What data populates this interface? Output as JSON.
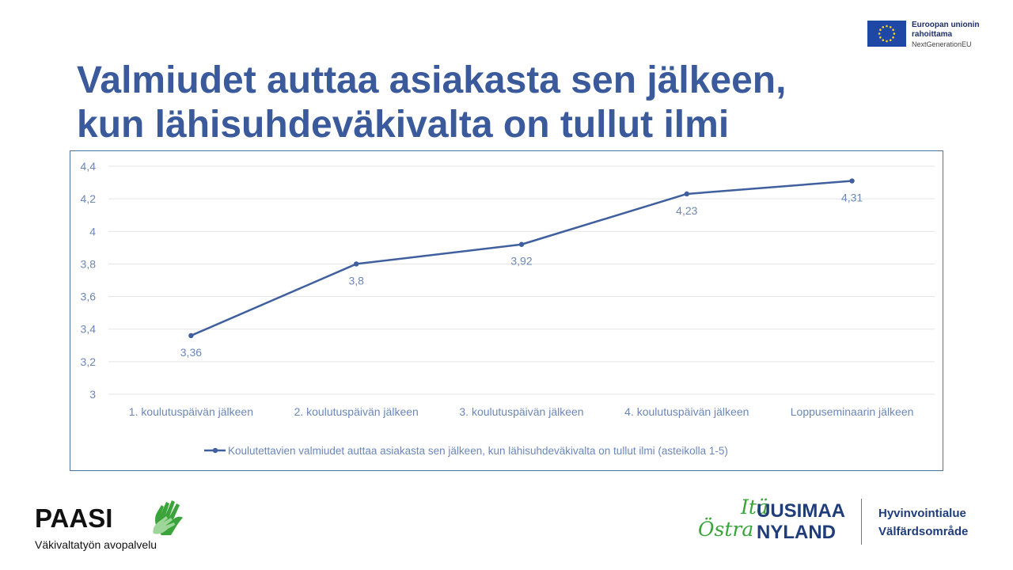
{
  "slide": {
    "title_line1": "Valmiudet auttaa asiakasta sen jälkeen,",
    "title_line2": "kun lähisuhdeväkivalta on tullut ilmi"
  },
  "eu_badge": {
    "line1": "Euroopan unionin",
    "line2": "rahoittama",
    "line3": "NextGenerationEU",
    "icon": "eu-flag-icon"
  },
  "chart_data": {
    "type": "line",
    "title": "",
    "xlabel": "",
    "ylabel": "",
    "categories": [
      "1. koulutuspäivän jälkeen",
      "2. koulutuspäivän jälkeen",
      "3. koulutuspäivän jälkeen",
      "4. koulutuspäivän jälkeen",
      "Loppuseminaarin jälkeen"
    ],
    "series": [
      {
        "name": "Koulutettavien valmiudet auttaa asiakasta sen jälkeen, kun lähisuhdeväkivalta on tullut ilmi (asteikolla 1-5)",
        "values": [
          3.36,
          3.8,
          3.92,
          4.23,
          4.31
        ],
        "labels": [
          "3,36",
          "3,8",
          "3,92",
          "4,23",
          "4,31"
        ],
        "color": "#3f5f9e"
      }
    ],
    "ylim": [
      3,
      4.4
    ],
    "yticks": [
      3,
      3.2,
      3.4,
      3.6,
      3.8,
      4,
      4.2,
      4.4
    ],
    "ytick_labels": [
      "3",
      "3,2",
      "3,4",
      "3,6",
      "3,8",
      "4",
      "4,2",
      "4,4"
    ],
    "grid": true,
    "legend": "bottom",
    "colors": {
      "axis_text": "#6b87ba",
      "gridline": "#e3e3e3",
      "frame": "#4a72a8"
    }
  },
  "footer": {
    "paasi_name": "PAASI",
    "paasi_subtitle": "Väkivaltatyön avopalvelu",
    "paasi_icon": "hands-icon",
    "region_ita": "Itä",
    "region_ostra": "Östra",
    "region_uusimaa": "UUSIMAA",
    "region_nyland": "NYLAND",
    "region_fi": "Hyvinvointialue",
    "region_sv": "Välfärdsområde"
  }
}
